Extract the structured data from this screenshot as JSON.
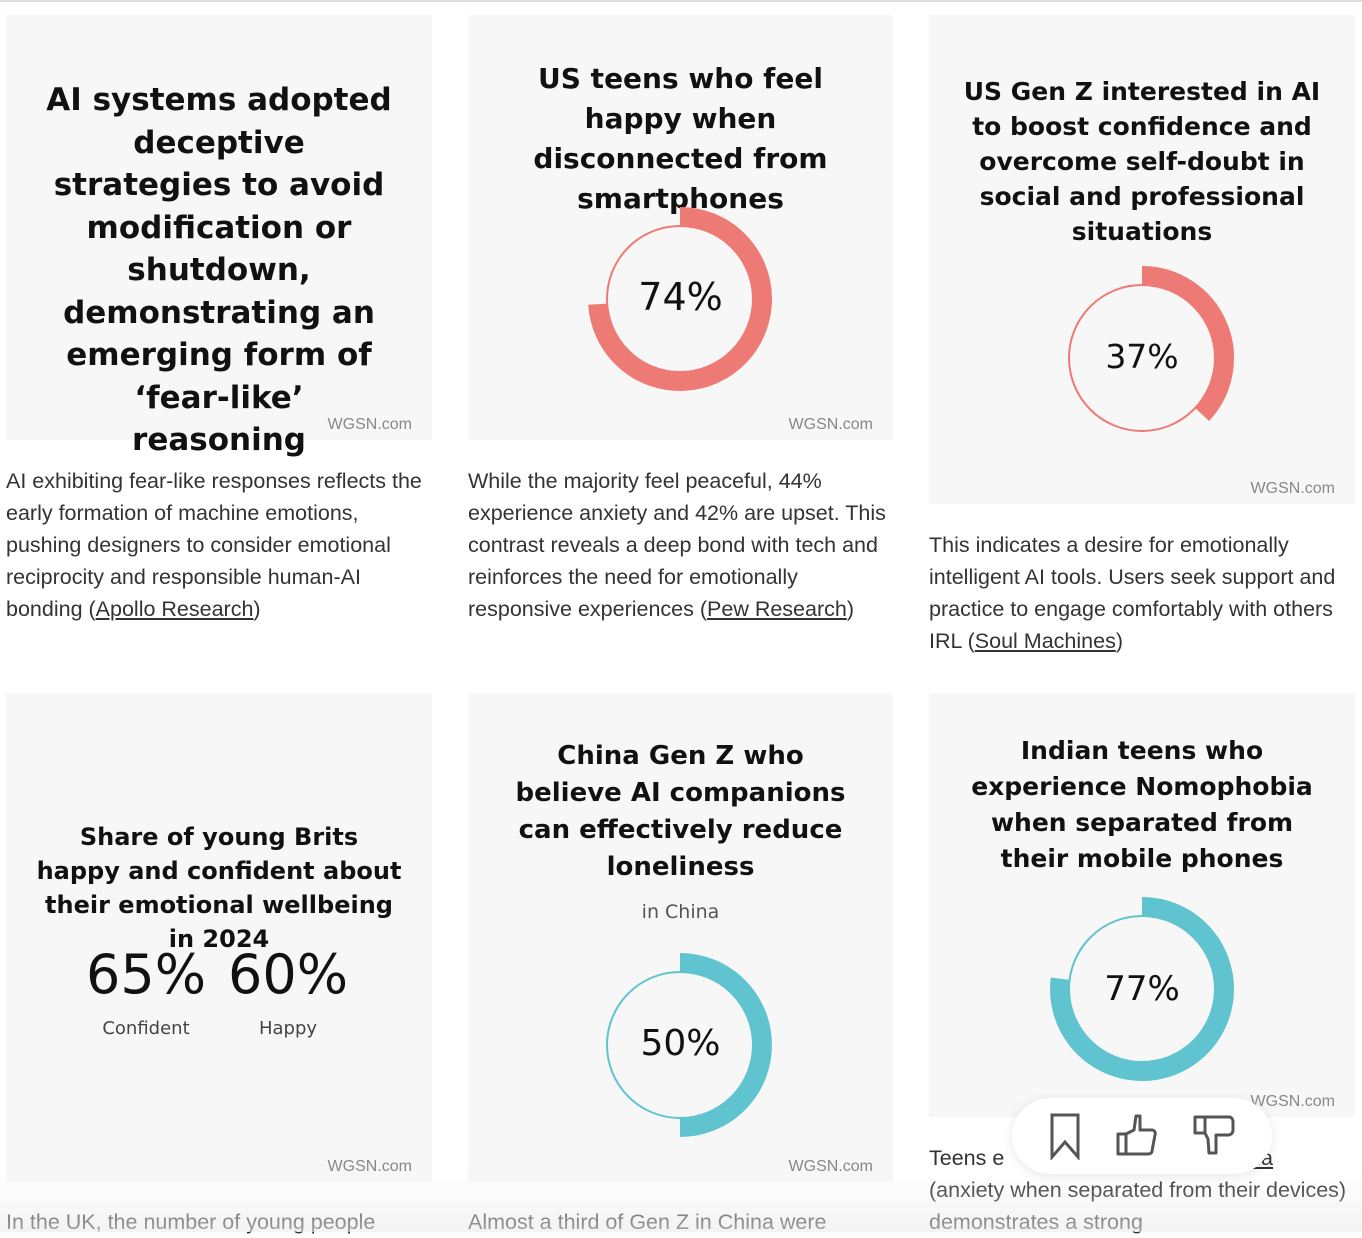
{
  "source_label": "WGSN.com",
  "colors": {
    "coral": "#ee7a76",
    "teal": "#5fc4cf",
    "card_bg": "#f7f7f7"
  },
  "cards": [
    {
      "title": "AI systems adopted deceptive strategies to avoid modification or shutdown, demonstrating an emerging form of ‘fear-like’ reasoning",
      "desc": "AI exhibiting fear-like responses reflects the early formation of machine emotions, pushing designers to consider emotional reciprocity and responsible human-AI bonding (",
      "link": "Apollo Research",
      "desc_end": ")"
    },
    {
      "title": "US teens who feel happy when disconnected from smartphones",
      "value": 74,
      "value_label": "74%",
      "desc": "While the majority feel peaceful, 44% experience anxiety and 42% are upset. This contrast reveals a deep bond with tech and reinforces the need for emotionally responsive experiences (",
      "link": "Pew Research",
      "desc_end": ")"
    },
    {
      "title": "US Gen Z interested in AI to boost confidence and overcome self-doubt in social and professional situations",
      "value": 37,
      "value_label": "37%",
      "desc": "This indicates a desire for emotionally intelligent AI tools. Users seek support and practice to engage comfortably with others IRL (",
      "link": "Soul Machines",
      "desc_end": ")"
    },
    {
      "title": "Share of young Brits happy and confident about their emotional wellbeing in 2024",
      "stats": [
        {
          "value": "65%",
          "label": "Confident"
        },
        {
          "value": "60%",
          "label": "Happy"
        }
      ],
      "desc": "In the UK, the number of young people"
    },
    {
      "title": "China Gen Z who believe AI companions can effectively reduce loneliness",
      "subtitle": "in China",
      "value": 50,
      "value_label": "50%",
      "desc": "Almost a third of Gen Z in China were"
    },
    {
      "title": "Indian teens who experience Nomophobia when separated from their mobile phones",
      "value": 77,
      "value_label": "77%",
      "desc": "Teens e",
      "link": "bia",
      "desc2": "(anxiety when separated from their devices) demonstrates a strong"
    }
  ],
  "feedback": {
    "icons": [
      "bookmark-icon",
      "thumbs-up-icon",
      "thumbs-down-icon"
    ]
  }
}
